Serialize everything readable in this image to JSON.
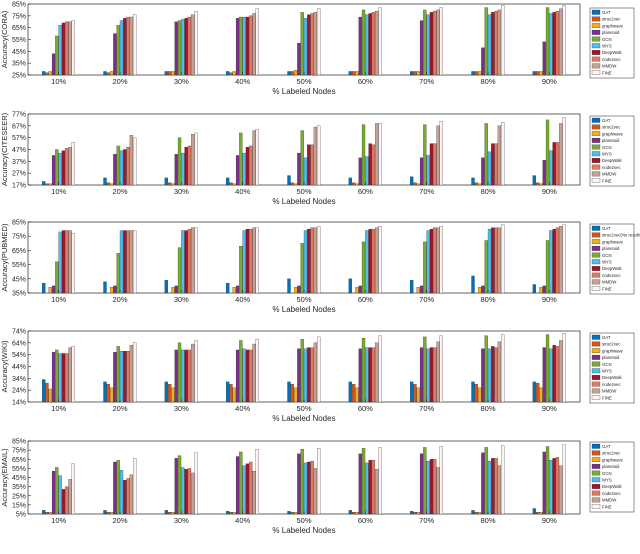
{
  "series_colors": [
    "#0072BD",
    "#D95319",
    "#EDB120",
    "#7E2F8E",
    "#77AC30",
    "#4DBEEE",
    "#A2142F",
    "#E07A5F",
    "#C6A191",
    "#FFF2F5"
  ],
  "chart_data": [
    {
      "type": "bar",
      "title": "",
      "xlabel": "% Labeled Nodes",
      "ylabel": "Accuracy(CORA)",
      "categories": [
        "10%",
        "20%",
        "30%",
        "40%",
        "50%",
        "60%",
        "70%",
        "80%",
        "90%"
      ],
      "ylim": [
        25,
        85
      ],
      "yticks": [
        25,
        35,
        45,
        55,
        65,
        75,
        85
      ],
      "ytick_labels": [
        "25%",
        "35%",
        "45%",
        "55%",
        "65%",
        "75%",
        "85%"
      ],
      "legend": "top-right",
      "series": [
        {
          "name": "GAT",
          "values": [
            28,
            28,
            28,
            28,
            28,
            28,
            28,
            28,
            28
          ]
        },
        {
          "name": "struc2vec",
          "values": [
            27,
            27,
            28,
            27,
            28,
            28,
            28,
            28,
            28
          ]
        },
        {
          "name": "graphwave",
          "values": [
            28,
            28,
            28,
            28,
            29,
            28,
            28,
            28,
            28
          ]
        },
        {
          "name": "planetoid",
          "values": [
            43,
            60,
            70,
            73,
            52,
            74,
            71,
            48,
            53
          ]
        },
        {
          "name": "GCN",
          "values": [
            58,
            67,
            71,
            74,
            78,
            80,
            80,
            82,
            82
          ]
        },
        {
          "name": "WYS",
          "values": [
            67,
            71,
            72,
            74,
            73,
            76,
            76,
            76,
            77
          ]
        },
        {
          "name": "DeepWalk",
          "values": [
            69,
            73,
            73,
            74,
            76,
            77,
            78,
            78,
            78
          ]
        },
        {
          "name": "node2vec",
          "values": [
            70,
            74,
            74,
            75,
            77,
            78,
            79,
            79,
            79
          ]
        },
        {
          "name": "MMDW",
          "values": [
            70,
            74,
            76,
            77,
            78,
            79,
            80,
            80,
            81
          ]
        },
        {
          "name": "FINE",
          "values": [
            71,
            76,
            79,
            81,
            81,
            82,
            82,
            84,
            84
          ]
        }
      ]
    },
    {
      "type": "bar",
      "title": "",
      "xlabel": "% Labeled Nodes",
      "ylabel": "Accuracy(CITESEER)",
      "categories": [
        "10%",
        "20%",
        "30%",
        "40%",
        "50%",
        "60%",
        "70%",
        "80%",
        "90%"
      ],
      "ylim": [
        17,
        77
      ],
      "yticks": [
        17,
        27,
        37,
        47,
        57,
        67,
        77
      ],
      "ytick_labels": [
        "17%",
        "27%",
        "37%",
        "47%",
        "57%",
        "67%",
        "77%"
      ],
      "legend": "top-right",
      "series": [
        {
          "name": "GAT",
          "values": [
            20,
            23,
            23,
            23,
            25,
            23,
            24,
            23,
            25
          ]
        },
        {
          "name": "struc2vec",
          "values": [
            18,
            19,
            19,
            19,
            19,
            19,
            19,
            19,
            19
          ]
        },
        {
          "name": "graphwave",
          "values": [
            18,
            18,
            18,
            18,
            18,
            18,
            18,
            18,
            18
          ]
        },
        {
          "name": "planetoid",
          "values": [
            42,
            43,
            43,
            42,
            44,
            40,
            40,
            40,
            38
          ]
        },
        {
          "name": "GCN",
          "values": [
            47,
            50,
            57,
            61,
            63,
            68,
            68,
            69,
            72
          ]
        },
        {
          "name": "WYS",
          "values": [
            44,
            46,
            44,
            44,
            40,
            41,
            42,
            45,
            46
          ]
        },
        {
          "name": "DeepWalk",
          "values": [
            46,
            47,
            49,
            49,
            51,
            52,
            52,
            52,
            53
          ]
        },
        {
          "name": "node2vec",
          "values": [
            48,
            49,
            50,
            50,
            51,
            51,
            52,
            52,
            53
          ]
        },
        {
          "name": "MMDW",
          "values": [
            49,
            59,
            60,
            63,
            66,
            69,
            67,
            67,
            69
          ]
        },
        {
          "name": "FINE",
          "values": [
            53,
            57,
            61,
            64,
            67,
            69,
            71,
            70,
            74
          ]
        }
      ]
    },
    {
      "type": "bar",
      "title": "",
      "xlabel": "% Labeled Nodes",
      "ylabel": "Accuracy(PUBMED)",
      "categories": [
        "10%",
        "20%",
        "30%",
        "40%",
        "50%",
        "60%",
        "70%",
        "80%",
        "90%"
      ],
      "ylim": [
        35,
        85
      ],
      "yticks": [
        35,
        45,
        55,
        65,
        75,
        85
      ],
      "ytick_labels": [
        "35%",
        "45%",
        "55%",
        "65%",
        "75%",
        "85%"
      ],
      "legend": "top-right",
      "series": [
        {
          "name": "GAT",
          "values": [
            42,
            43,
            44,
            42,
            45,
            45,
            44,
            47,
            41
          ]
        },
        {
          "name": "struc2vec(No results)",
          "values": [
            0,
            0,
            0,
            0,
            0,
            0,
            0,
            0,
            0
          ]
        },
        {
          "name": "graphwave",
          "values": [
            39,
            39,
            39,
            39,
            39,
            39,
            39,
            39,
            39
          ]
        },
        {
          "name": "planetoid",
          "values": [
            40,
            40,
            40,
            40,
            40,
            40,
            40,
            40,
            40
          ]
        },
        {
          "name": "GCN",
          "values": [
            57,
            63,
            67,
            68,
            70,
            71,
            71,
            72,
            72
          ]
        },
        {
          "name": "WYS",
          "values": [
            78,
            79,
            79,
            79,
            79,
            79,
            79,
            80,
            79
          ]
        },
        {
          "name": "DeepWalk",
          "values": [
            79,
            79,
            79,
            80,
            80,
            80,
            80,
            81,
            80
          ]
        },
        {
          "name": "node2vec",
          "values": [
            79,
            79,
            80,
            80,
            81,
            80,
            81,
            81,
            81
          ]
        },
        {
          "name": "MMDW",
          "values": [
            79,
            79,
            81,
            81,
            81,
            81,
            81,
            81,
            82
          ]
        },
        {
          "name": "FINE",
          "values": [
            77,
            79,
            81,
            81,
            82,
            82,
            82,
            83,
            83
          ]
        }
      ]
    },
    {
      "type": "bar",
      "title": "",
      "xlabel": "% Labeled Nodes",
      "ylabel": "Accuracy(WIKI)",
      "categories": [
        "10%",
        "20%",
        "30%",
        "40%",
        "50%",
        "60%",
        "70%",
        "80%",
        "90%"
      ],
      "ylim": [
        14,
        74
      ],
      "yticks": [
        14,
        24,
        34,
        44,
        54,
        64,
        74
      ],
      "ytick_labels": [
        "14%",
        "24%",
        "34%",
        "44%",
        "54%",
        "64%",
        "74%"
      ],
      "legend": "top-right",
      "series": [
        {
          "name": "GAT",
          "values": [
            33,
            31,
            31,
            31,
            31,
            31,
            31,
            31,
            31
          ]
        },
        {
          "name": "struc2vec",
          "values": [
            30,
            29,
            29,
            29,
            29,
            29,
            29,
            29,
            30
          ]
        },
        {
          "name": "graphwave",
          "values": [
            25,
            26,
            26,
            26,
            26,
            26,
            26,
            26,
            26
          ]
        },
        {
          "name": "planetoid",
          "values": [
            56,
            56,
            58,
            58,
            59,
            59,
            60,
            59,
            60
          ]
        },
        {
          "name": "GCN",
          "values": [
            58,
            61,
            64,
            66,
            67,
            68,
            69,
            70,
            71
          ]
        },
        {
          "name": "WYS",
          "values": [
            55,
            57,
            58,
            59,
            59,
            60,
            59,
            59,
            59
          ]
        },
        {
          "name": "DeepWalk",
          "values": [
            55,
            57,
            58,
            58,
            60,
            60,
            60,
            61,
            62
          ]
        },
        {
          "name": "node2vec",
          "values": [
            55,
            57,
            58,
            58,
            60,
            60,
            60,
            60,
            61
          ]
        },
        {
          "name": "MMDW",
          "values": [
            60,
            62,
            63,
            63,
            64,
            64,
            65,
            65,
            66
          ]
        },
        {
          "name": "FINE",
          "values": [
            61,
            64,
            66,
            67,
            69,
            70,
            70,
            71,
            72
          ]
        }
      ]
    },
    {
      "type": "bar",
      "title": "",
      "xlabel": "% Labeled Nodes",
      "ylabel": "Accuracy(EMAIL)",
      "categories": [
        "10%",
        "20%",
        "30%",
        "40%",
        "50%",
        "60%",
        "70%",
        "80%",
        "90%"
      ],
      "ylim": [
        5,
        85
      ],
      "yticks": [
        5,
        15,
        25,
        35,
        45,
        55,
        65,
        75,
        85
      ],
      "ytick_labels": [
        "5%",
        "15%",
        "25%",
        "35%",
        "45%",
        "55%",
        "65%",
        "75%",
        "85%"
      ],
      "legend": "top-right",
      "series": [
        {
          "name": "GAT",
          "values": [
            9,
            9,
            9,
            8,
            8,
            9,
            8,
            9,
            11
          ]
        },
        {
          "name": "struc2vec",
          "values": [
            7,
            7,
            7,
            7,
            7,
            7,
            7,
            7,
            7
          ]
        },
        {
          "name": "graphwave",
          "values": [
            7,
            7,
            7,
            7,
            7,
            7,
            7,
            7,
            7
          ]
        },
        {
          "name": "planetoid",
          "values": [
            52,
            62,
            66,
            68,
            71,
            71,
            71,
            72,
            73
          ]
        },
        {
          "name": "GCN",
          "values": [
            56,
            64,
            69,
            73,
            76,
            77,
            78,
            78,
            79
          ]
        },
        {
          "name": "WYS",
          "values": [
            47,
            53,
            56,
            58,
            61,
            61,
            63,
            63,
            64
          ]
        },
        {
          "name": "DeepWalk",
          "values": [
            32,
            42,
            54,
            60,
            62,
            64,
            65,
            66,
            66
          ]
        },
        {
          "name": "node2vec",
          "values": [
            35,
            44,
            55,
            62,
            63,
            64,
            65,
            66,
            67
          ]
        },
        {
          "name": "MMDW",
          "values": [
            43,
            48,
            50,
            52,
            55,
            54,
            56,
            58,
            58
          ]
        },
        {
          "name": "FINE",
          "values": [
            60,
            66,
            72,
            76,
            77,
            78,
            79,
            80,
            81
          ]
        }
      ]
    }
  ]
}
